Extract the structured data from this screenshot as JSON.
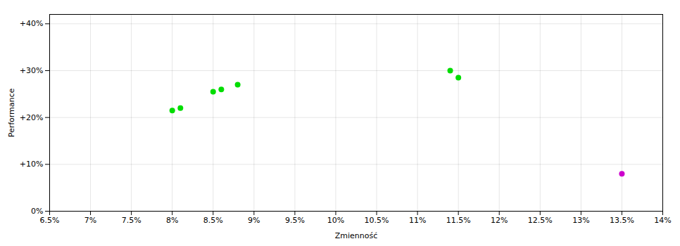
{
  "chart_data": {
    "type": "scatter",
    "xlabel": "Zmienność",
    "ylabel": "Performance",
    "xlim": [
      0.065,
      0.14
    ],
    "ylim": [
      0.0,
      0.42
    ],
    "xticks": [
      {
        "value": 0.065,
        "label": "6.5%"
      },
      {
        "value": 0.07,
        "label": "7%"
      },
      {
        "value": 0.075,
        "label": "7.5%"
      },
      {
        "value": 0.08,
        "label": "8%"
      },
      {
        "value": 0.085,
        "label": "8.5%"
      },
      {
        "value": 0.09,
        "label": "9%"
      },
      {
        "value": 0.095,
        "label": "9.5%"
      },
      {
        "value": 0.1,
        "label": "10%"
      },
      {
        "value": 0.105,
        "label": "10.5%"
      },
      {
        "value": 0.11,
        "label": "11%"
      },
      {
        "value": 0.115,
        "label": "11.5%"
      },
      {
        "value": 0.12,
        "label": "12%"
      },
      {
        "value": 0.125,
        "label": "12.5%"
      },
      {
        "value": 0.13,
        "label": "13%"
      },
      {
        "value": 0.135,
        "label": "13.5%"
      },
      {
        "value": 0.14,
        "label": "14%"
      }
    ],
    "yticks": [
      {
        "value": 0.0,
        "label": "0%"
      },
      {
        "value": 0.1,
        "label": "+10%"
      },
      {
        "value": 0.2,
        "label": "+20%"
      },
      {
        "value": 0.3,
        "label": "+30%"
      },
      {
        "value": 0.4,
        "label": "+40%"
      }
    ],
    "grid": true,
    "series": [
      {
        "color": "#00dd00",
        "marker": "circle",
        "x": [
          0.08,
          0.081,
          0.085,
          0.086,
          0.088,
          0.114,
          0.115
        ],
        "values": [
          0.215,
          0.22,
          0.255,
          0.26,
          0.27,
          0.3,
          0.285
        ]
      },
      {
        "color": "#cc00cc",
        "marker": "circle",
        "x": [
          0.135
        ],
        "values": [
          0.08
        ]
      }
    ]
  }
}
